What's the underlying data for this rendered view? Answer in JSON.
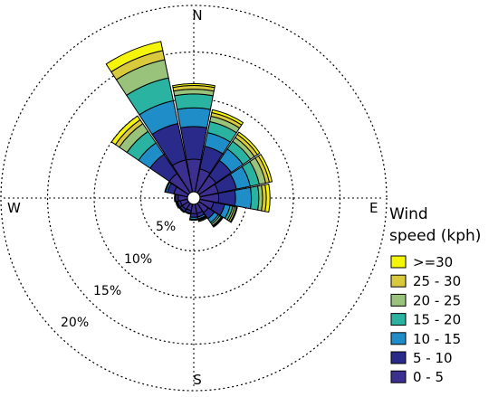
{
  "chart_data": {
    "type": "windrose",
    "directions": [
      "N",
      "NNE",
      "NE",
      "ENE",
      "E",
      "ESE",
      "SE",
      "SSE",
      "S",
      "SSW",
      "SW",
      "WSW",
      "W",
      "WNW",
      "NW",
      "NNW"
    ],
    "compass_labels": {
      "n": "N",
      "e": "E",
      "s": "S",
      "w": "W"
    },
    "radial_ticks": [
      {
        "value": 5,
        "label": "5%"
      },
      {
        "value": 10,
        "label": "10%"
      },
      {
        "value": 15,
        "label": "15%"
      },
      {
        "value": 20,
        "label": "20%"
      }
    ],
    "legend_title_line1": "Wind",
    "legend_title_line2": "speed (kph)",
    "series": [
      {
        "name": "0 - 5",
        "color": "#3b2f8f",
        "values": [
          3.5,
          2.5,
          2.2,
          2.0,
          2.0,
          1.5,
          1.2,
          1.0,
          1.0,
          0.7,
          0.8,
          0.8,
          1.0,
          1.5,
          2.5,
          3.5
        ]
      },
      {
        "name": "5 - 10",
        "color": "#2a2a8a",
        "values": [
          3.5,
          2.5,
          2.0,
          2.0,
          1.8,
          1.2,
          0.8,
          0.4,
          0.4,
          0.3,
          0.3,
          0.3,
          0.3,
          0.7,
          2.5,
          4.0
        ]
      },
      {
        "name": "10 - 15",
        "color": "#1f8ec8",
        "values": [
          2.0,
          1.5,
          1.5,
          1.5,
          1.7,
          0.6,
          0.5,
          0.2,
          0.2,
          0.1,
          0.1,
          0.1,
          0.1,
          0.2,
          1.5,
          2.5
        ]
      },
      {
        "name": "15 - 20",
        "color": "#2ab3a0",
        "values": [
          1.5,
          1.2,
          1.0,
          1.0,
          0.8,
          0.3,
          0.2,
          0.1,
          0.1,
          0.0,
          0.0,
          0.1,
          0.0,
          0.1,
          1.5,
          2.5
        ]
      },
      {
        "name": "20 - 25",
        "color": "#99c27a",
        "values": [
          0.5,
          0.6,
          0.5,
          0.7,
          0.4,
          0.2,
          0.2,
          0.1,
          0.0,
          0.0,
          0.0,
          0.0,
          0.0,
          0.0,
          1.0,
          2.0
        ]
      },
      {
        "name": "25 - 30",
        "color": "#d9c93c",
        "values": [
          0.4,
          0.4,
          0.4,
          0.4,
          0.4,
          0.2,
          0.1,
          0.1,
          0.0,
          0.0,
          0.0,
          0.0,
          0.0,
          0.0,
          0.5,
          1.0
        ]
      },
      {
        "name": ">=30",
        "color": "#f5f50a",
        "values": [
          0.2,
          0.3,
          0.3,
          0.3,
          0.4,
          0.1,
          0.1,
          0.0,
          0.0,
          0.0,
          0.0,
          0.0,
          0.0,
          0.0,
          0.5,
          1.0
        ]
      }
    ],
    "legend_order": [
      ">=30",
      "25 - 30",
      "20 - 25",
      "15 - 20",
      "10 - 15",
      "5 - 10",
      "0 - 5"
    ]
  }
}
